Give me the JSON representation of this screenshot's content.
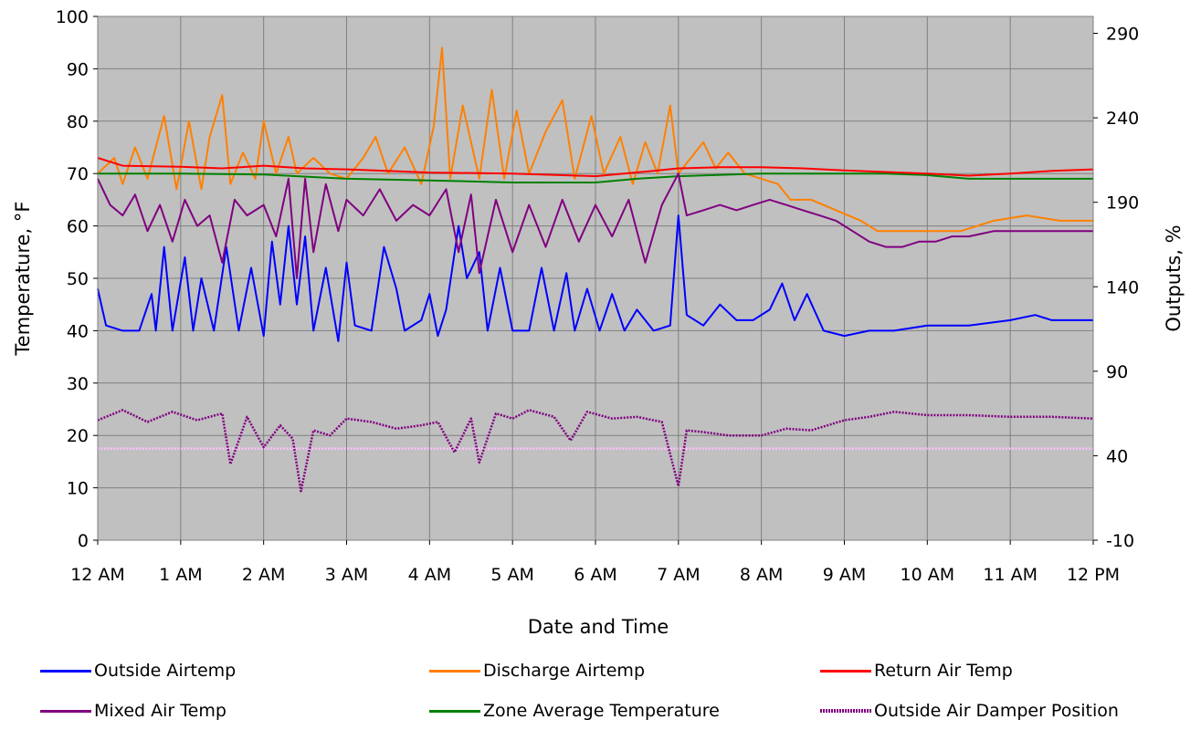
{
  "chart_data": {
    "type": "line",
    "title": "",
    "xlabel": "Date and Time",
    "ylabel_left": "Temperature, °F",
    "ylabel_right": "Outputs, %",
    "x_ticks": [
      "12 AM",
      "1 AM",
      "2 AM",
      "3 AM",
      "4 AM",
      "5 AM",
      "6 AM",
      "7 AM",
      "8 AM",
      "9 AM",
      "10 AM",
      "11 AM",
      "12 PM"
    ],
    "x_range_hours": [
      0,
      12
    ],
    "y_left_ticks": [
      0,
      10,
      20,
      30,
      40,
      50,
      60,
      70,
      80,
      90,
      100
    ],
    "y_left_range": [
      0,
      100
    ],
    "y_right_ticks": [
      -10,
      40,
      90,
      140,
      190,
      240,
      290
    ],
    "y_right_range": [
      -10,
      300
    ],
    "grid": true,
    "plot_background": "#c0c0c0",
    "legend_position": "bottom",
    "series": [
      {
        "name": "Outside Airtemp",
        "color": "#0000ff",
        "axis": "left",
        "style": "solid",
        "points": [
          [
            0,
            48
          ],
          [
            0.1,
            41
          ],
          [
            0.3,
            40
          ],
          [
            0.5,
            40
          ],
          [
            0.65,
            47
          ],
          [
            0.7,
            40
          ],
          [
            0.8,
            56
          ],
          [
            0.9,
            40
          ],
          [
            1.05,
            54
          ],
          [
            1.15,
            40
          ],
          [
            1.25,
            50
          ],
          [
            1.4,
            40
          ],
          [
            1.55,
            56
          ],
          [
            1.7,
            40
          ],
          [
            1.85,
            52
          ],
          [
            2.0,
            39
          ],
          [
            2.1,
            57
          ],
          [
            2.2,
            45
          ],
          [
            2.3,
            60
          ],
          [
            2.4,
            45
          ],
          [
            2.5,
            58
          ],
          [
            2.6,
            40
          ],
          [
            2.75,
            52
          ],
          [
            2.9,
            38
          ],
          [
            3.0,
            53
          ],
          [
            3.1,
            41
          ],
          [
            3.3,
            40
          ],
          [
            3.45,
            56
          ],
          [
            3.6,
            48
          ],
          [
            3.7,
            40
          ],
          [
            3.9,
            42
          ],
          [
            4.0,
            47
          ],
          [
            4.1,
            39
          ],
          [
            4.2,
            44
          ],
          [
            4.35,
            60
          ],
          [
            4.45,
            50
          ],
          [
            4.6,
            55
          ],
          [
            4.7,
            40
          ],
          [
            4.85,
            52
          ],
          [
            5.0,
            40
          ],
          [
            5.2,
            40
          ],
          [
            5.35,
            52
          ],
          [
            5.5,
            40
          ],
          [
            5.65,
            51
          ],
          [
            5.75,
            40
          ],
          [
            5.9,
            48
          ],
          [
            6.05,
            40
          ],
          [
            6.2,
            47
          ],
          [
            6.35,
            40
          ],
          [
            6.5,
            44
          ],
          [
            6.7,
            40
          ],
          [
            6.9,
            41
          ],
          [
            7.0,
            62
          ],
          [
            7.1,
            43
          ],
          [
            7.3,
            41
          ],
          [
            7.5,
            45
          ],
          [
            7.7,
            42
          ],
          [
            7.9,
            42
          ],
          [
            8.1,
            44
          ],
          [
            8.25,
            49
          ],
          [
            8.4,
            42
          ],
          [
            8.55,
            47
          ],
          [
            8.75,
            40
          ],
          [
            9.0,
            39
          ],
          [
            9.3,
            40
          ],
          [
            9.6,
            40
          ],
          [
            10.0,
            41
          ],
          [
            10.5,
            41
          ],
          [
            11.0,
            42
          ],
          [
            11.3,
            43
          ],
          [
            11.5,
            42
          ],
          [
            12,
            42
          ]
        ]
      },
      {
        "name": "Discharge Airtemp",
        "color": "#ff8000",
        "axis": "left",
        "style": "solid",
        "points": [
          [
            0,
            70
          ],
          [
            0.2,
            73
          ],
          [
            0.3,
            68
          ],
          [
            0.45,
            75
          ],
          [
            0.6,
            69
          ],
          [
            0.8,
            81
          ],
          [
            0.95,
            67
          ],
          [
            1.1,
            80
          ],
          [
            1.25,
            67
          ],
          [
            1.35,
            77
          ],
          [
            1.5,
            85
          ],
          [
            1.6,
            68
          ],
          [
            1.75,
            74
          ],
          [
            1.9,
            69
          ],
          [
            2.0,
            80
          ],
          [
            2.15,
            70
          ],
          [
            2.3,
            77
          ],
          [
            2.4,
            70
          ],
          [
            2.6,
            73
          ],
          [
            2.8,
            70
          ],
          [
            3.0,
            69
          ],
          [
            3.2,
            73
          ],
          [
            3.35,
            77
          ],
          [
            3.5,
            70
          ],
          [
            3.7,
            75
          ],
          [
            3.9,
            68
          ],
          [
            4.05,
            79
          ],
          [
            4.15,
            94
          ],
          [
            4.25,
            69
          ],
          [
            4.4,
            83
          ],
          [
            4.6,
            69
          ],
          [
            4.75,
            86
          ],
          [
            4.9,
            69
          ],
          [
            5.05,
            82
          ],
          [
            5.2,
            70
          ],
          [
            5.4,
            78
          ],
          [
            5.6,
            84
          ],
          [
            5.75,
            69
          ],
          [
            5.95,
            81
          ],
          [
            6.1,
            70
          ],
          [
            6.3,
            77
          ],
          [
            6.45,
            68
          ],
          [
            6.6,
            76
          ],
          [
            6.75,
            70
          ],
          [
            6.9,
            83
          ],
          [
            7.0,
            70
          ],
          [
            7.1,
            72
          ],
          [
            7.3,
            76
          ],
          [
            7.45,
            71
          ],
          [
            7.6,
            74
          ],
          [
            7.8,
            70
          ],
          [
            8.0,
            69
          ],
          [
            8.2,
            68
          ],
          [
            8.35,
            65
          ],
          [
            8.6,
            65
          ],
          [
            8.9,
            63
          ],
          [
            9.2,
            61
          ],
          [
            9.4,
            59
          ],
          [
            9.7,
            59
          ],
          [
            10.0,
            59
          ],
          [
            10.4,
            59
          ],
          [
            10.8,
            61
          ],
          [
            11.2,
            62
          ],
          [
            11.6,
            61
          ],
          [
            12,
            61
          ]
        ]
      },
      {
        "name": "Return Air Temp",
        "color": "#ff0000",
        "axis": "left",
        "style": "solid",
        "points": [
          [
            0,
            73
          ],
          [
            0.3,
            71.5
          ],
          [
            1,
            71.3
          ],
          [
            1.5,
            71
          ],
          [
            2,
            71.5
          ],
          [
            2.5,
            71
          ],
          [
            3,
            70.8
          ],
          [
            4,
            70.2
          ],
          [
            5,
            70
          ],
          [
            6,
            69.5
          ],
          [
            6.7,
            70.5
          ],
          [
            7,
            71
          ],
          [
            7.5,
            71.2
          ],
          [
            8,
            71.2
          ],
          [
            8.5,
            71
          ],
          [
            9,
            70.6
          ],
          [
            9.5,
            70.3
          ],
          [
            10,
            70
          ],
          [
            10.5,
            69.6
          ],
          [
            11,
            70
          ],
          [
            11.5,
            70.5
          ],
          [
            12,
            70.8
          ]
        ]
      },
      {
        "name": "Mixed Air Temp",
        "color": "#800080",
        "axis": "left",
        "style": "solid",
        "points": [
          [
            0,
            69
          ],
          [
            0.15,
            64
          ],
          [
            0.3,
            62
          ],
          [
            0.45,
            66
          ],
          [
            0.6,
            59
          ],
          [
            0.75,
            64
          ],
          [
            0.9,
            57
          ],
          [
            1.05,
            65
          ],
          [
            1.2,
            60
          ],
          [
            1.35,
            62
          ],
          [
            1.5,
            53
          ],
          [
            1.65,
            65
          ],
          [
            1.8,
            62
          ],
          [
            2.0,
            64
          ],
          [
            2.15,
            58
          ],
          [
            2.3,
            69
          ],
          [
            2.4,
            50
          ],
          [
            2.5,
            69
          ],
          [
            2.6,
            55
          ],
          [
            2.75,
            68
          ],
          [
            2.9,
            59
          ],
          [
            3.0,
            65
          ],
          [
            3.2,
            62
          ],
          [
            3.4,
            67
          ],
          [
            3.6,
            61
          ],
          [
            3.8,
            64
          ],
          [
            4.0,
            62
          ],
          [
            4.2,
            67
          ],
          [
            4.35,
            55
          ],
          [
            4.5,
            66
          ],
          [
            4.6,
            51
          ],
          [
            4.8,
            65
          ],
          [
            5.0,
            55
          ],
          [
            5.2,
            64
          ],
          [
            5.4,
            56
          ],
          [
            5.6,
            65
          ],
          [
            5.8,
            57
          ],
          [
            6.0,
            64
          ],
          [
            6.2,
            58
          ],
          [
            6.4,
            65
          ],
          [
            6.6,
            53
          ],
          [
            6.8,
            64
          ],
          [
            7.0,
            70
          ],
          [
            7.1,
            62
          ],
          [
            7.3,
            63
          ],
          [
            7.5,
            64
          ],
          [
            7.7,
            63
          ],
          [
            7.9,
            64
          ],
          [
            8.1,
            65
          ],
          [
            8.3,
            64
          ],
          [
            8.5,
            63
          ],
          [
            8.7,
            62
          ],
          [
            8.9,
            61
          ],
          [
            9.1,
            59
          ],
          [
            9.3,
            57
          ],
          [
            9.5,
            56
          ],
          [
            9.7,
            56
          ],
          [
            9.9,
            57
          ],
          [
            10.1,
            57
          ],
          [
            10.3,
            58
          ],
          [
            10.5,
            58
          ],
          [
            10.8,
            59
          ],
          [
            11.1,
            59
          ],
          [
            11.4,
            59
          ],
          [
            11.7,
            59
          ],
          [
            12,
            59
          ]
        ]
      },
      {
        "name": "Zone Average Temperature",
        "color": "#008000",
        "axis": "left",
        "style": "solid",
        "points": [
          [
            0,
            70
          ],
          [
            1,
            70
          ],
          [
            2,
            69.8
          ],
          [
            3,
            69
          ],
          [
            4,
            68.7
          ],
          [
            5,
            68.3
          ],
          [
            6,
            68.3
          ],
          [
            6.5,
            69
          ],
          [
            7,
            69.5
          ],
          [
            8,
            70
          ],
          [
            9,
            70
          ],
          [
            9.5,
            70
          ],
          [
            10,
            69.7
          ],
          [
            10.5,
            69
          ],
          [
            11,
            69
          ],
          [
            12,
            69
          ]
        ]
      },
      {
        "name": "Outside Air Damper Position",
        "color": "#800080",
        "axis": "right",
        "style": "dotted",
        "points": [
          [
            0,
            61
          ],
          [
            0.3,
            67
          ],
          [
            0.6,
            60
          ],
          [
            0.9,
            66
          ],
          [
            1.2,
            61
          ],
          [
            1.5,
            65
          ],
          [
            1.6,
            35
          ],
          [
            1.8,
            63
          ],
          [
            2.0,
            45
          ],
          [
            2.2,
            58
          ],
          [
            2.35,
            50
          ],
          [
            2.45,
            19
          ],
          [
            2.6,
            55
          ],
          [
            2.8,
            52
          ],
          [
            3.0,
            62
          ],
          [
            3.3,
            60
          ],
          [
            3.6,
            56
          ],
          [
            3.9,
            58
          ],
          [
            4.1,
            60
          ],
          [
            4.3,
            42
          ],
          [
            4.5,
            62
          ],
          [
            4.6,
            36
          ],
          [
            4.8,
            65
          ],
          [
            5.0,
            62
          ],
          [
            5.2,
            67
          ],
          [
            5.5,
            63
          ],
          [
            5.7,
            49
          ],
          [
            5.9,
            66
          ],
          [
            6.2,
            62
          ],
          [
            6.5,
            63
          ],
          [
            6.8,
            60
          ],
          [
            7.0,
            22
          ],
          [
            7.1,
            55
          ],
          [
            7.3,
            54
          ],
          [
            7.6,
            52
          ],
          [
            8.0,
            52
          ],
          [
            8.3,
            56
          ],
          [
            8.6,
            55
          ],
          [
            9.0,
            61
          ],
          [
            9.3,
            63
          ],
          [
            9.6,
            66
          ],
          [
            10.0,
            64
          ],
          [
            10.5,
            64
          ],
          [
            11.0,
            63
          ],
          [
            11.5,
            63
          ],
          [
            12,
            62
          ]
        ]
      },
      {
        "name": "",
        "color": "#ffc0ff",
        "axis": "left",
        "style": "dotted",
        "points": [
          [
            0,
            17.5
          ],
          [
            12,
            17.5
          ]
        ]
      }
    ]
  }
}
